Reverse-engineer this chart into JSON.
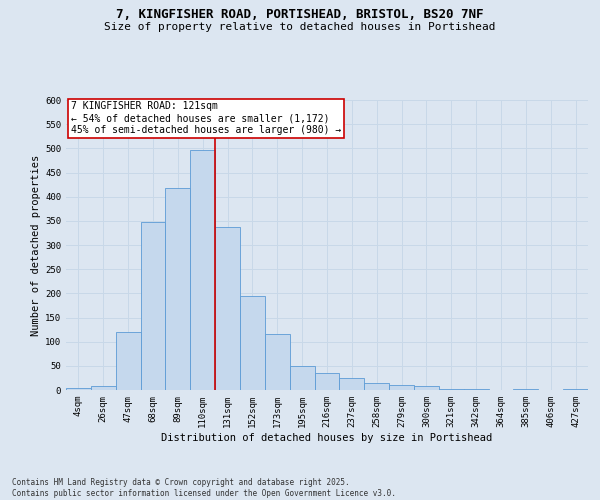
{
  "title_line1": "7, KINGFISHER ROAD, PORTISHEAD, BRISTOL, BS20 7NF",
  "title_line2": "Size of property relative to detached houses in Portishead",
  "xlabel": "Distribution of detached houses by size in Portishead",
  "ylabel": "Number of detached properties",
  "footnote": "Contains HM Land Registry data © Crown copyright and database right 2025.\nContains public sector information licensed under the Open Government Licence v3.0.",
  "bin_labels": [
    "4sqm",
    "26sqm",
    "47sqm",
    "68sqm",
    "89sqm",
    "110sqm",
    "131sqm",
    "152sqm",
    "173sqm",
    "195sqm",
    "216sqm",
    "237sqm",
    "258sqm",
    "279sqm",
    "300sqm",
    "321sqm",
    "342sqm",
    "364sqm",
    "385sqm",
    "406sqm",
    "427sqm"
  ],
  "bar_values": [
    5,
    8,
    120,
    348,
    417,
    497,
    338,
    195,
    115,
    50,
    35,
    24,
    15,
    10,
    8,
    3,
    2,
    1,
    2,
    1,
    2
  ],
  "bar_color": "#c5d8ed",
  "bar_edge_color": "#5b9bd5",
  "grid_color": "#c8d8e8",
  "background_color": "#dce6f1",
  "property_label": "7 KINGFISHER ROAD: 121sqm",
  "annotation_line1": "← 54% of detached houses are smaller (1,172)",
  "annotation_line2": "45% of semi-detached houses are larger (980) →",
  "vline_position": 5.5,
  "vline_color": "#cc0000",
  "box_facecolor": "#ffffff",
  "box_edgecolor": "#cc0000",
  "ylim": [
    0,
    600
  ],
  "yticks": [
    0,
    50,
    100,
    150,
    200,
    250,
    300,
    350,
    400,
    450,
    500,
    550,
    600
  ],
  "title1_fontsize": 9,
  "title2_fontsize": 8,
  "ylabel_fontsize": 7.5,
  "xlabel_fontsize": 7.5,
  "tick_fontsize": 6.5,
  "annot_fontsize": 7,
  "footnote_fontsize": 5.5
}
